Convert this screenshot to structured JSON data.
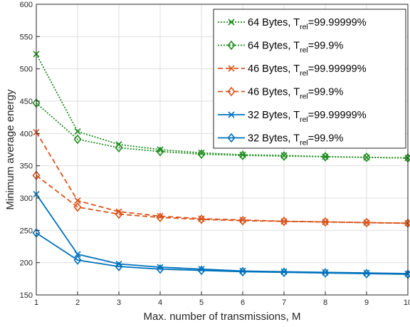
{
  "chart_data": {
    "type": "line",
    "title": "",
    "xlabel": "Max. number of transmissions, M",
    "ylabel": "Minimum average energy",
    "xlim": [
      1,
      10
    ],
    "ylim": [
      150,
      600
    ],
    "x_ticks": [
      1,
      2,
      3,
      4,
      5,
      6,
      7,
      8,
      9,
      10
    ],
    "y_ticks": [
      150,
      200,
      250,
      300,
      350,
      400,
      450,
      500,
      550,
      600
    ],
    "grid": true,
    "legend_position": "top-right",
    "x": [
      1,
      2,
      3,
      4,
      5,
      6,
      7,
      8,
      9,
      10
    ],
    "series": [
      {
        "label_main": "64 Bytes, T",
        "label_sub": "rel",
        "label_tail": "=99.99999%",
        "color": "#1f8c1f",
        "dash": "dotted",
        "marker": "x",
        "values": [
          523,
          403,
          383,
          375,
          370,
          367,
          366,
          364,
          363,
          362
        ]
      },
      {
        "label_main": "64 Bytes, T",
        "label_sub": "rel",
        "label_tail": "=99.9%",
        "color": "#1f8c1f",
        "dash": "dotted",
        "marker": "diamond",
        "values": [
          447,
          391,
          378,
          372,
          368,
          366,
          365,
          364,
          363,
          362
        ]
      },
      {
        "label_main": "46 Bytes, T",
        "label_sub": "rel",
        "label_tail": "=99.99999%",
        "color": "#d95319",
        "dash": "dashed",
        "marker": "x",
        "values": [
          402,
          296,
          279,
          272,
          268,
          266,
          264,
          263,
          262,
          261
        ]
      },
      {
        "label_main": "46 Bytes, T",
        "label_sub": "rel",
        "label_tail": "=99.9%",
        "color": "#d95319",
        "dash": "dashed",
        "marker": "diamond",
        "values": [
          335,
          286,
          275,
          270,
          267,
          265,
          264,
          263,
          262,
          261
        ]
      },
      {
        "label_main": "32 Bytes, T",
        "label_sub": "rel",
        "label_tail": "=99.99999%",
        "color": "#0072bd",
        "dash": "solid",
        "marker": "x",
        "values": [
          306,
          213,
          198,
          193,
          190,
          187,
          186,
          185,
          184,
          183
        ]
      },
      {
        "label_main": "32 Bytes, T",
        "label_sub": "rel",
        "label_tail": "=99.9%",
        "color": "#0072bd",
        "dash": "solid",
        "marker": "diamond",
        "values": [
          246,
          204,
          194,
          190,
          188,
          186,
          185,
          184,
          183,
          182
        ]
      }
    ]
  }
}
